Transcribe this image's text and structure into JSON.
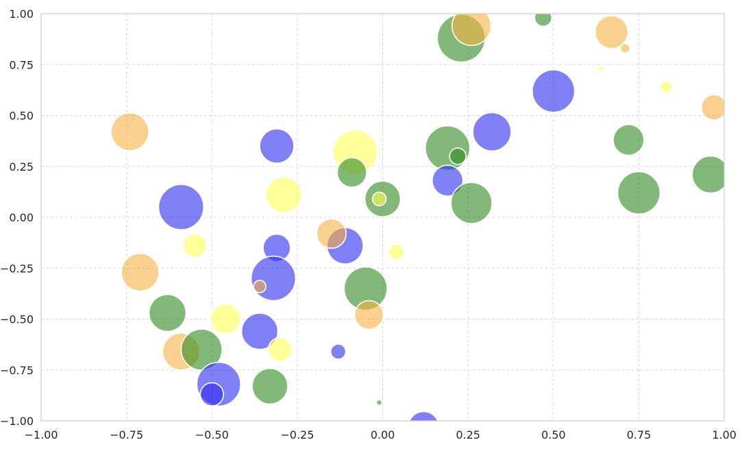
{
  "chart_data": {
    "type": "scatter",
    "xlim": [
      -1.0,
      1.0
    ],
    "ylim": [
      -1.0,
      1.0
    ],
    "grid": true,
    "grid_style": "dashed",
    "x_ticks": [
      -1.0,
      -0.75,
      -0.5,
      -0.25,
      0.0,
      0.25,
      0.5,
      0.75,
      1.0
    ],
    "y_ticks": [
      -1.0,
      -0.75,
      -0.5,
      -0.25,
      0.0,
      0.25,
      0.5,
      0.75,
      1.0
    ],
    "x_tick_labels": [
      "−1.00",
      "−0.75",
      "−0.50",
      "−0.25",
      "0.00",
      "0.25",
      "0.50",
      "0.75",
      "1.00"
    ],
    "y_tick_labels": [
      "−1.00",
      "−0.75",
      "−0.50",
      "−0.25",
      "0.00",
      "0.25",
      "0.50",
      "0.75",
      "1.00"
    ],
    "colors": {
      "orange": "#f5b041",
      "yellow": "#ffff55",
      "blue": "#2b2bf0",
      "green": "#2e8b1e"
    },
    "opacity": 0.6,
    "size_unit": "relative radius",
    "points": [
      {
        "x": 0.23,
        "y": 0.88,
        "r": 0.07,
        "c": "green"
      },
      {
        "x": 0.26,
        "y": 0.94,
        "r": 0.057,
        "c": "orange"
      },
      {
        "x": 0.47,
        "y": 0.98,
        "r": 0.025,
        "c": "green"
      },
      {
        "x": 0.67,
        "y": 0.91,
        "r": 0.048,
        "c": "orange"
      },
      {
        "x": 0.71,
        "y": 0.83,
        "r": 0.014,
        "c": "orange"
      },
      {
        "x": 0.64,
        "y": 0.73,
        "r": 0.008,
        "c": "yellow"
      },
      {
        "x": 0.83,
        "y": 0.64,
        "r": 0.017,
        "c": "yellow"
      },
      {
        "x": 0.97,
        "y": 0.54,
        "r": 0.037,
        "c": "orange"
      },
      {
        "x": 0.5,
        "y": 0.62,
        "r": 0.062,
        "c": "blue"
      },
      {
        "x": 0.32,
        "y": 0.42,
        "r": 0.056,
        "c": "blue"
      },
      {
        "x": 0.72,
        "y": 0.38,
        "r": 0.045,
        "c": "green"
      },
      {
        "x": 0.96,
        "y": 0.21,
        "r": 0.054,
        "c": "green"
      },
      {
        "x": 0.75,
        "y": 0.12,
        "r": 0.062,
        "c": "green"
      },
      {
        "x": 0.19,
        "y": 0.34,
        "r": 0.065,
        "c": "green"
      },
      {
        "x": 0.22,
        "y": 0.3,
        "r": 0.024,
        "c": "green"
      },
      {
        "x": 0.19,
        "y": 0.18,
        "r": 0.045,
        "c": "blue"
      },
      {
        "x": 0.26,
        "y": 0.07,
        "r": 0.06,
        "c": "green"
      },
      {
        "x": -0.08,
        "y": 0.32,
        "r": 0.065,
        "c": "yellow"
      },
      {
        "x": -0.09,
        "y": 0.22,
        "r": 0.043,
        "c": "green"
      },
      {
        "x": -0.31,
        "y": 0.35,
        "r": 0.05,
        "c": "blue"
      },
      {
        "x": -0.74,
        "y": 0.42,
        "r": 0.055,
        "c": "orange"
      },
      {
        "x": -0.59,
        "y": 0.05,
        "r": 0.066,
        "c": "blue"
      },
      {
        "x": -0.29,
        "y": 0.11,
        "r": 0.052,
        "c": "yellow"
      },
      {
        "x": 0.0,
        "y": 0.09,
        "r": 0.052,
        "c": "green"
      },
      {
        "x": -0.01,
        "y": 0.09,
        "r": 0.02,
        "c": "yellow"
      },
      {
        "x": -0.55,
        "y": -0.14,
        "r": 0.034,
        "c": "yellow"
      },
      {
        "x": -0.71,
        "y": -0.27,
        "r": 0.055,
        "c": "orange"
      },
      {
        "x": -0.31,
        "y": -0.15,
        "r": 0.04,
        "c": "blue"
      },
      {
        "x": -0.11,
        "y": -0.14,
        "r": 0.053,
        "c": "blue"
      },
      {
        "x": -0.15,
        "y": -0.08,
        "r": 0.043,
        "c": "orange"
      },
      {
        "x": 0.04,
        "y": -0.17,
        "r": 0.023,
        "c": "yellow"
      },
      {
        "x": -0.32,
        "y": -0.3,
        "r": 0.065,
        "c": "blue"
      },
      {
        "x": -0.36,
        "y": -0.34,
        "r": 0.018,
        "c": "orange"
      },
      {
        "x": -0.05,
        "y": -0.35,
        "r": 0.063,
        "c": "green"
      },
      {
        "x": -0.04,
        "y": -0.48,
        "r": 0.042,
        "c": "orange"
      },
      {
        "x": -0.63,
        "y": -0.47,
        "r": 0.054,
        "c": "green"
      },
      {
        "x": -0.46,
        "y": -0.5,
        "r": 0.044,
        "c": "yellow"
      },
      {
        "x": -0.36,
        "y": -0.56,
        "r": 0.053,
        "c": "blue"
      },
      {
        "x": -0.59,
        "y": -0.66,
        "r": 0.054,
        "c": "orange"
      },
      {
        "x": -0.53,
        "y": -0.65,
        "r": 0.06,
        "c": "green"
      },
      {
        "x": -0.3,
        "y": -0.65,
        "r": 0.035,
        "c": "yellow"
      },
      {
        "x": -0.13,
        "y": -0.66,
        "r": 0.022,
        "c": "blue"
      },
      {
        "x": -0.48,
        "y": -0.82,
        "r": 0.064,
        "c": "blue"
      },
      {
        "x": -0.5,
        "y": -0.87,
        "r": 0.034,
        "c": "blue"
      },
      {
        "x": -0.33,
        "y": -0.83,
        "r": 0.052,
        "c": "green"
      },
      {
        "x": -0.01,
        "y": -0.91,
        "r": 0.008,
        "c": "green"
      },
      {
        "x": 0.12,
        "y": -1.03,
        "r": 0.045,
        "c": "blue"
      }
    ]
  }
}
